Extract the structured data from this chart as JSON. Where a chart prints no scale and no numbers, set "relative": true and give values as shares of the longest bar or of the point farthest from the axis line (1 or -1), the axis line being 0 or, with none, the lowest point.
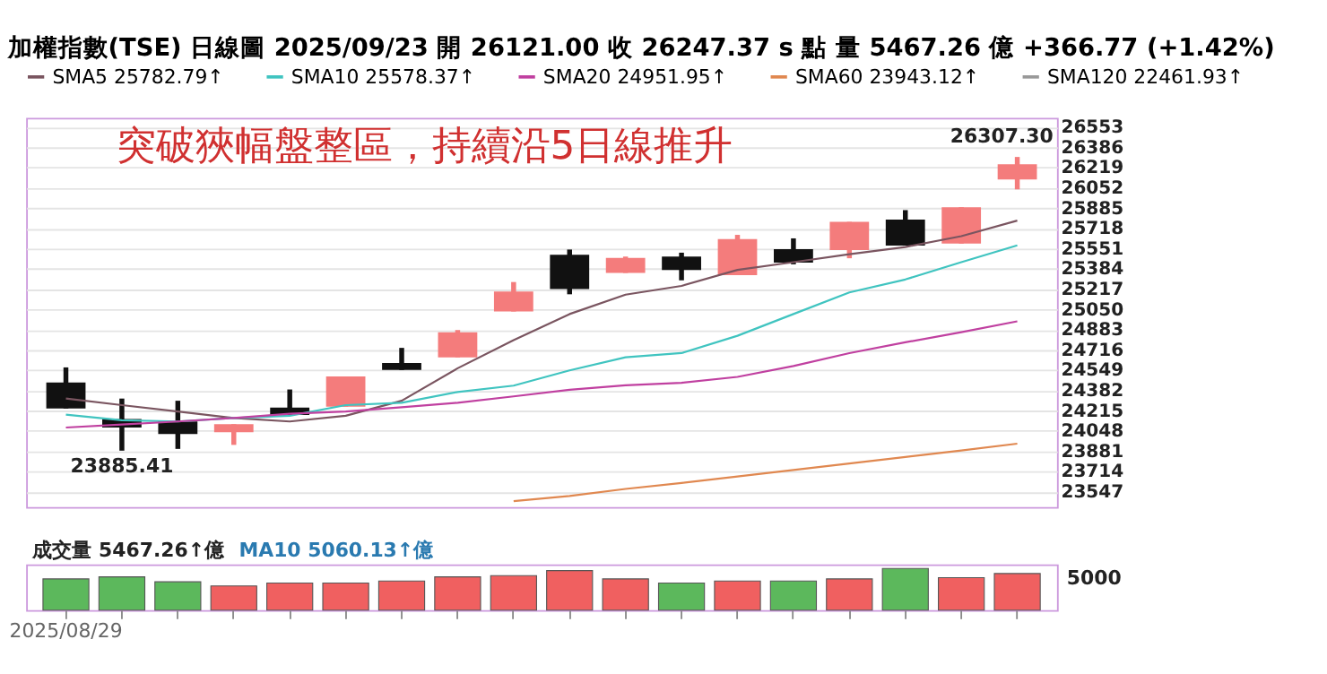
{
  "chart_data": [
    {
      "type": "candlestick",
      "title": "加權指數(TSE)  日線圖  2025/09/23  開 26121.00  收 26247.37 s 點  量 5467.26 億  +366.77 (+1.42%)",
      "categories": [
        null,
        null,
        null,
        null,
        null,
        null,
        null,
        null,
        null,
        null,
        null,
        null,
        null,
        null,
        null,
        null,
        null,
        null
      ],
      "ohlc": [
        [
          24447,
          24572,
          24233,
          24233
        ],
        [
          24147,
          24315,
          23885.41,
          24076
        ],
        [
          24126,
          24297,
          23900,
          24023
        ],
        [
          24037,
          24104,
          23933,
          24104
        ],
        [
          24240,
          24390,
          24179,
          24179
        ],
        [
          24248,
          24497,
          24248,
          24497
        ],
        [
          24608,
          24733,
          24551,
          24551
        ],
        [
          24655,
          24880,
          24655,
          24862
        ],
        [
          25033,
          25276,
          25033,
          25197
        ],
        [
          25501,
          25544,
          25175,
          25218
        ],
        [
          25351,
          25486,
          25351,
          25475
        ],
        [
          25486,
          25518,
          25290,
          25376
        ],
        [
          25333,
          25665,
          25333,
          25630
        ],
        [
          25547,
          25636,
          25422,
          25437
        ],
        [
          25540,
          25772,
          25472,
          25772
        ],
        [
          25790,
          25869,
          25576,
          25576
        ],
        [
          25593,
          25893,
          25593,
          25893
        ],
        [
          26121.0,
          26307.3,
          26040,
          26247.37
        ]
      ],
      "colors": [
        "#111111",
        "#111111",
        "#111111",
        "#f47c7c",
        "#111111",
        "#f47c7c",
        "#111111",
        "#f47c7c",
        "#f47c7c",
        "#111111",
        "#f47c7c",
        "#111111",
        "#f47c7c",
        "#111111",
        "#f47c7c",
        "#111111",
        "#f47c7c",
        "#f47c7c"
      ],
      "series": [
        {
          "name": "SMA5 25782.79↑",
          "type": "line",
          "color": "#7a5560",
          "values": [
            24315,
            24261,
            24208,
            24155,
            24126,
            24173,
            24297,
            24565,
            24797,
            25012,
            25172,
            25244,
            25376,
            25440,
            25505,
            25565,
            25654,
            25782.79
          ]
        },
        {
          "name": "SMA10 25578.37↑",
          "type": "line",
          "color": "#40c4c0",
          "values": [
            24183,
            24136,
            24126,
            24155,
            24173,
            24261,
            24280,
            24369,
            24422,
            24547,
            24655,
            24690,
            24833,
            25012,
            25190,
            25297,
            25440,
            25578.37
          ]
        },
        {
          "name": "SMA20 24951.95↑",
          "type": "line",
          "color": "#c040a0",
          "values": [
            24076,
            24101,
            24126,
            24155,
            24190,
            24208,
            24244,
            24280,
            24333,
            24387,
            24425,
            24445,
            24494,
            24583,
            24690,
            24779,
            24862,
            24951.95
          ]
        },
        {
          "name": "SMA60 23943.12↑",
          "type": "line",
          "color": "#e08850",
          "values": [
            null,
            null,
            null,
            null,
            null,
            null,
            null,
            null,
            23469,
            23512,
            23570,
            23619,
            23672,
            23726,
            23780,
            23833,
            23887,
            23943.12
          ]
        },
        {
          "name": "SMA120 22461.93↑",
          "type": "line",
          "color": "#999999",
          "values": [
            null,
            null,
            null,
            null,
            null,
            null,
            null,
            null,
            null,
            null,
            null,
            null,
            null,
            null,
            null,
            null,
            null,
            null
          ]
        }
      ],
      "ylim": [
        23420,
        26630
      ],
      "yticks": [
        23547,
        23714,
        23881,
        24048,
        24215,
        24382,
        24549,
        24716,
        24883,
        25050,
        25217,
        25384,
        25551,
        25718,
        25885,
        26052,
        26219,
        26386,
        26553
      ],
      "grid": "y",
      "legend": "top",
      "tick_labels": "y",
      "line_style": "solid",
      "marker": "none",
      "annotations": [
        "突破狹幅盤整區，持續沿5日線推升",
        {
          "text": "23885.41",
          "y": 23885.41
        },
        {
          "text": "26307.30",
          "y": 26307.3
        }
      ]
    },
    {
      "type": "bar",
      "categories": [
        "2025/08/29",
        null,
        null,
        null,
        null,
        null,
        null,
        null,
        null,
        null,
        null,
        null,
        null,
        null,
        null,
        null,
        null,
        null
      ],
      "values": [
        0.75,
        0.8,
        0.68,
        0.58,
        0.65,
        0.65,
        0.7,
        0.8,
        0.83,
        0.95,
        0.75,
        0.65,
        0.7,
        0.7,
        0.75,
        1,
        0.78,
        0.88
      ],
      "relative": true,
      "colors": [
        "#5cb85c",
        "#5cb85c",
        "#5cb85c",
        "#f06060",
        "#f06060",
        "#f06060",
        "#f06060",
        "#f06060",
        "#f06060",
        "#f06060",
        "#f06060",
        "#5cb85c",
        "#f06060",
        "#5cb85c",
        "#f06060",
        "#5cb85c",
        "#f06060",
        "#f06060"
      ],
      "annotations": [
        "成交量 5467.26↑億",
        "MA10 5060.13↑億",
        "5000"
      ]
    }
  ]
}
